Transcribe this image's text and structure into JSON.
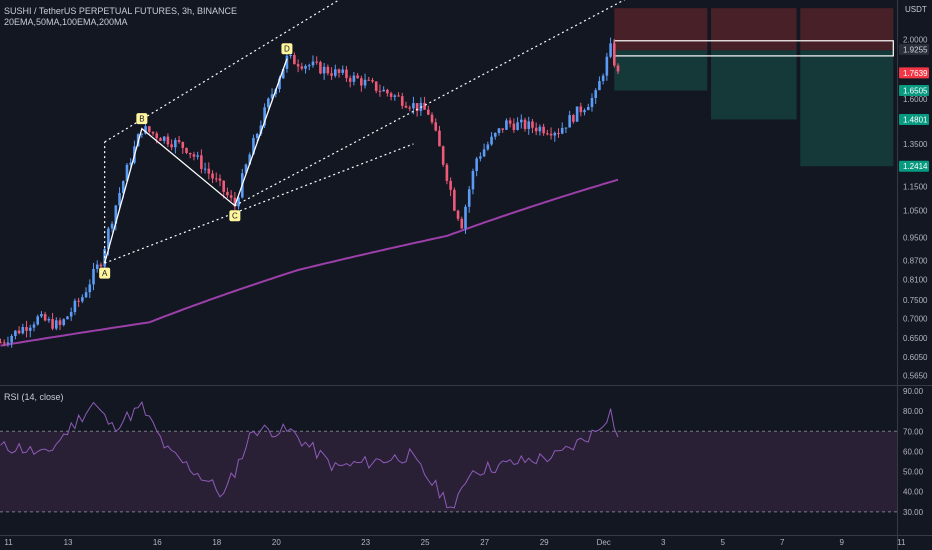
{
  "header": {
    "title": "SUSHI / TetherUS PERPETUAL FUTURES, 3h, BINANCE",
    "indicators": "20EMA,50MA,100EMA,200MA",
    "currency": "USDT"
  },
  "colors": {
    "background": "#131722",
    "bull": "#5b9cf6",
    "bear": "#ef5a78",
    "ma": "#9c3fa9",
    "rsi_line": "#8e5bb8",
    "rsi_band": "#2a2036",
    "stop_zone": "#4a2129",
    "target_zone": "#153a3b",
    "pattern": "#ffffff",
    "pattern_label_bg": "#fff59d"
  },
  "price_axis": {
    "scale": "log",
    "range": [
      0.545,
      2.32
    ],
    "ticks": [
      "2.0000",
      "1.6000",
      "1.3500",
      "1.1500",
      "1.0500",
      "0.9500",
      "0.8700",
      "0.8100",
      "0.7500",
      "0.7000",
      "0.6500",
      "0.6050",
      "0.5650"
    ],
    "tick_values": [
      2.0,
      1.6,
      1.35,
      1.15,
      1.05,
      0.95,
      0.87,
      0.81,
      0.75,
      0.7,
      0.65,
      0.605,
      0.565
    ],
    "badges": [
      {
        "label": "1.9255",
        "value": 1.9255,
        "color": "#2a2e39",
        "text_color": "#d1d4dc"
      },
      {
        "label": "1.7639",
        "value": 1.7639,
        "color": "#f23645",
        "text_color": "#ffffff"
      },
      {
        "label": "1.6505",
        "value": 1.6505,
        "color": "#089981",
        "text_color": "#ffffff"
      },
      {
        "label": "1.4801",
        "value": 1.4801,
        "color": "#089981",
        "text_color": "#ffffff"
      },
      {
        "label": "1.2414",
        "value": 1.2414,
        "color": "#089981",
        "text_color": "#ffffff"
      }
    ]
  },
  "time_axis": {
    "labels": [
      "11",
      "13",
      "16",
      "18",
      "20",
      "23",
      "25",
      "27",
      "29",
      "Dec",
      "3",
      "5",
      "7",
      "9",
      "11"
    ],
    "bar_index": [
      0,
      16,
      40,
      56,
      72,
      96,
      112,
      128,
      144,
      160,
      176,
      192,
      208,
      224,
      240
    ]
  },
  "rsi": {
    "legend": "RSI (14, close)",
    "range": [
      20,
      90
    ],
    "ticks": [
      "90.00",
      "80.00",
      "70.00",
      "60.00",
      "50.00",
      "40.00",
      "30.00"
    ],
    "tick_values": [
      90,
      80,
      70,
      60,
      50,
      40,
      30
    ],
    "overbought": 70,
    "oversold": 30
  },
  "pattern": {
    "points": [
      {
        "label": "A",
        "bar": 28,
        "price": 0.862
      },
      {
        "label": "B",
        "bar": 38,
        "price": 1.43
      },
      {
        "label": "C",
        "bar": 63,
        "price": 1.07
      },
      {
        "label": "D",
        "bar": 77,
        "price": 1.86
      }
    ],
    "channel_upper": [
      {
        "bar": 28,
        "price": 1.36
      },
      {
        "bar": 111,
        "price": 2.75
      }
    ],
    "channel_lower": [
      {
        "bar": 28,
        "price": 0.862
      },
      {
        "bar": 111,
        "price": 1.35
      }
    ],
    "outer_line": [
      {
        "bar": 63,
        "price": 1.07
      },
      {
        "bar": 175,
        "price": 2.45
      }
    ]
  },
  "trade_zones": [
    {
      "from_bar": 165,
      "to_bar": 190,
      "entry": 1.92,
      "stop": 2.25,
      "target": 1.6505
    },
    {
      "from_bar": 191,
      "to_bar": 214,
      "entry": 1.92,
      "stop": 2.25,
      "target": 1.4801
    },
    {
      "from_bar": 215,
      "to_bar": 240,
      "entry": 1.92,
      "stop": 2.25,
      "target": 1.2414
    }
  ],
  "entry_box": {
    "from_bar": 165,
    "to_bar": 240,
    "top": 1.99,
    "bottom": 1.88
  },
  "chart_data": {
    "type": "candlestick",
    "title": "SUSHI / TetherUS PERPETUAL FUTURES, 3h, BINANCE",
    "x_unit": "3h bars",
    "key_closes": [
      [
        0,
        0.64
      ],
      [
        10,
        0.7
      ],
      [
        16,
        0.68
      ],
      [
        22,
        0.76
      ],
      [
        27,
        0.87
      ],
      [
        38,
        1.43
      ],
      [
        50,
        1.33
      ],
      [
        63,
        1.07
      ],
      [
        77,
        1.86
      ],
      [
        96,
        1.72
      ],
      [
        115,
        1.52
      ],
      [
        122,
        1.07
      ],
      [
        124,
        1.0
      ],
      [
        128,
        1.28
      ],
      [
        136,
        1.46
      ],
      [
        150,
        1.42
      ],
      [
        160,
        1.62
      ],
      [
        164,
        1.93
      ],
      [
        166,
        1.75
      ]
    ],
    "ma200": [
      [
        0,
        0.632
      ],
      [
        40,
        0.69
      ],
      [
        80,
        0.84
      ],
      [
        120,
        0.955
      ],
      [
        166,
        1.18
      ]
    ],
    "rsi": [
      [
        0,
        62
      ],
      [
        5,
        62
      ],
      [
        12,
        58
      ],
      [
        22,
        78
      ],
      [
        25,
        84
      ],
      [
        30,
        72
      ],
      [
        38,
        82
      ],
      [
        45,
        60
      ],
      [
        56,
        45
      ],
      [
        60,
        38
      ],
      [
        68,
        71
      ],
      [
        78,
        70
      ],
      [
        90,
        52
      ],
      [
        110,
        58
      ],
      [
        118,
        40
      ],
      [
        122,
        31
      ],
      [
        126,
        50
      ],
      [
        140,
        55
      ],
      [
        150,
        58
      ],
      [
        160,
        70
      ],
      [
        164,
        80
      ],
      [
        166,
        67
      ]
    ]
  }
}
